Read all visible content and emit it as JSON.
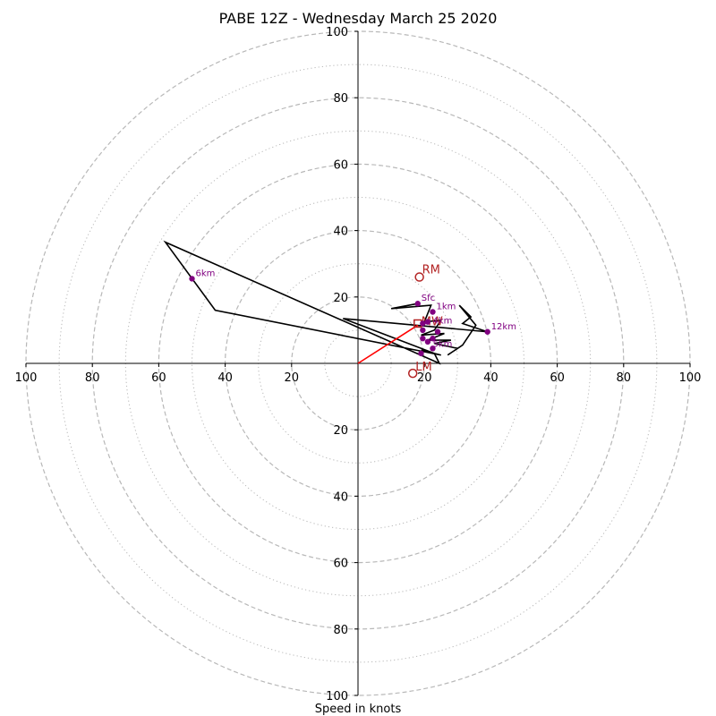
{
  "chart_data": {
    "type": "hodograph",
    "title": "PABE 12Z - Wednesday March 25 2020",
    "xlabel": "Speed in knots",
    "radial_range": [
      0,
      100
    ],
    "major_rings": [
      20,
      40,
      60,
      80,
      100
    ],
    "minor_rings": [
      10,
      30,
      50,
      70,
      90
    ],
    "x_tick_labels": [
      "100",
      "80",
      "60",
      "40",
      "20",
      "20",
      "40",
      "60",
      "80",
      "100"
    ],
    "y_tick_labels": [
      "100",
      "80",
      "60",
      "40",
      "20",
      "20",
      "40",
      "60",
      "80",
      "100"
    ],
    "x_tick_values": [
      -100,
      -80,
      -60,
      -40,
      -20,
      20,
      40,
      60,
      80,
      100
    ],
    "y_tick_values": [
      100,
      80,
      60,
      40,
      20,
      -20,
      -40,
      -60,
      -80,
      -100
    ],
    "hodograph_trace": [
      [
        18,
        18
      ],
      [
        10,
        16.5
      ],
      [
        22,
        17.5
      ],
      [
        20,
        12.5
      ],
      [
        25,
        13
      ],
      [
        23,
        10
      ],
      [
        19,
        8.5
      ],
      [
        26,
        9
      ],
      [
        21,
        7
      ],
      [
        28,
        7
      ],
      [
        23,
        6
      ],
      [
        30,
        4.5
      ],
      [
        27,
        2.5
      ],
      [
        31.5,
        5.5
      ],
      [
        35.5,
        11.5
      ],
      [
        30.5,
        17.5
      ],
      [
        34,
        14
      ],
      [
        31.5,
        12
      ],
      [
        39,
        9.5
      ],
      [
        -4.5,
        13.5
      ],
      [
        23,
        3
      ],
      [
        24.5,
        0
      ],
      [
        -58,
        36.5
      ],
      [
        -43,
        16
      ],
      [
        25,
        2.5
      ],
      [
        19,
        4
      ]
    ],
    "height_points": [
      {
        "label": "Sfc",
        "u": 18,
        "v": 18
      },
      {
        "label": "1km",
        "u": 22.5,
        "v": 15.5
      },
      {
        "label": "",
        "u": 19.5,
        "v": 12
      },
      {
        "label": "",
        "u": 19.5,
        "v": 10
      },
      {
        "label": "",
        "u": 21,
        "v": 12.5
      },
      {
        "label": "",
        "u": 19.5,
        "v": 7.5
      },
      {
        "label": "",
        "u": 21,
        "v": 6.5
      },
      {
        "label": "",
        "u": 22.5,
        "v": 7.5
      },
      {
        "label": "",
        "u": 24,
        "v": 9.5
      },
      {
        "label": "",
        "u": 22.5,
        "v": 4.5
      },
      {
        "label": "",
        "u": 19,
        "v": 3
      },
      {
        "label": "12km",
        "u": 39,
        "v": 9.5
      },
      {
        "label": "6km",
        "u": -50,
        "v": 25.5
      }
    ],
    "partial_labels": [
      {
        "text": "4km",
        "u": 22.5,
        "v": 12
      },
      {
        "text": "5km",
        "u": 22.5,
        "v": 5
      }
    ],
    "storm_motion": {
      "rm": {
        "label": "RM",
        "u": 18.5,
        "v": 26
      },
      "lm": {
        "label": "LM",
        "u": 16.5,
        "v": -3
      },
      "mw": {
        "label": "MW",
        "u": 18,
        "v": 12
      },
      "vector_end": {
        "u": 18,
        "v": 11.5
      }
    },
    "colors": {
      "trace": "#000000",
      "points": "#800080",
      "storm": "#b22222",
      "vector": "#ff0000",
      "ring": "#b8b8b8",
      "axis": "#000000"
    },
    "grid": true
  }
}
